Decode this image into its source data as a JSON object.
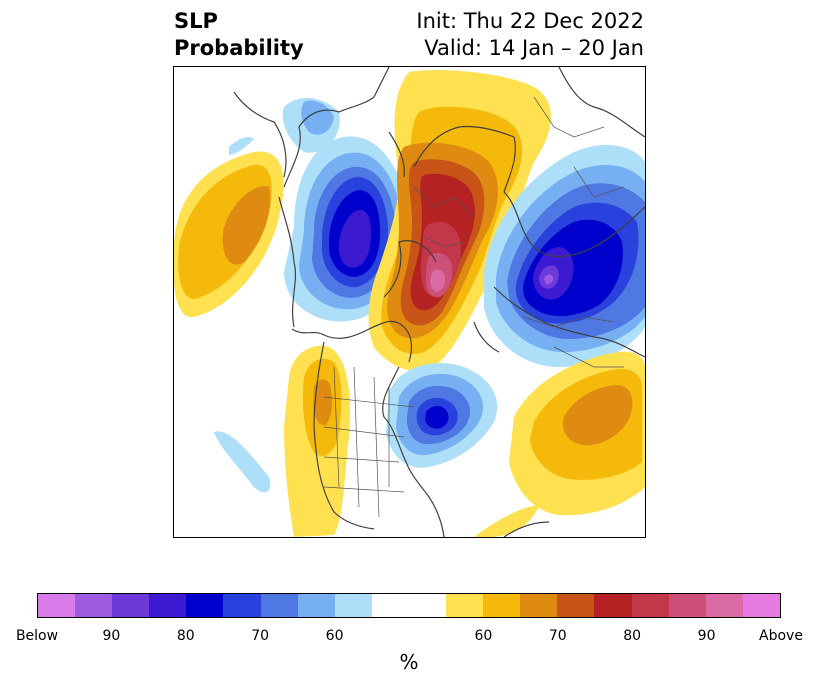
{
  "header": {
    "title_line1": "SLP",
    "title_line2": "Probability",
    "init": "Init: Thu 22 Dec 2022",
    "valid": "Valid: 14 Jan – 20 Jan"
  },
  "colorbar": {
    "unit": "%",
    "colors": [
      "#d77be8",
      "#9d5be2",
      "#6c3ad9",
      "#3b1ad1",
      "#0000cd",
      "#2a42dd",
      "#4f78e3",
      "#76b0f2",
      "#addff9",
      "#ffffff",
      "#ffe14f",
      "#f4b90a",
      "#df8b12",
      "#c85418",
      "#b42223",
      "#c2374a",
      "#cc5078",
      "#da6aa4",
      "#e77ae0"
    ],
    "tick_labels": [
      "Below",
      "90",
      "80",
      "70",
      "60",
      "60",
      "70",
      "80",
      "90",
      "Above"
    ]
  }
}
